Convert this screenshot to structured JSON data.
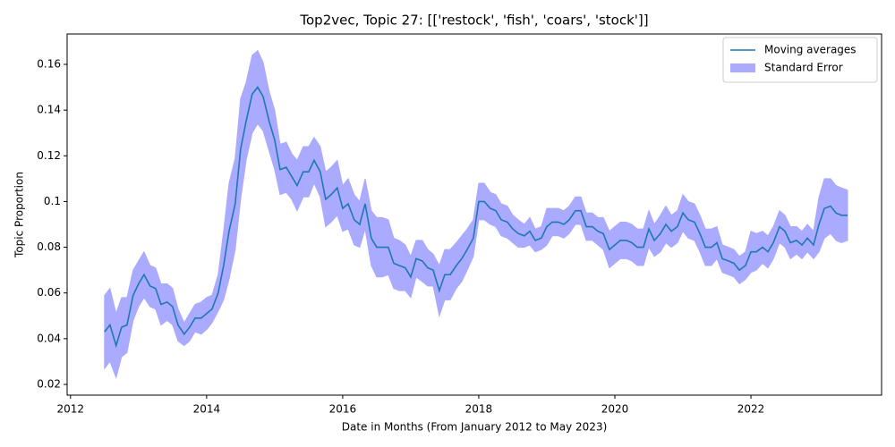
{
  "chart_data": {
    "type": "line",
    "title": "Top2vec, Topic 27: [['restock', 'fish', 'coars', 'stock']]",
    "x_label": "Date in Months (From January 2012 to May 2023)",
    "y_label": "Topic Proportion",
    "x": [
      2012.5,
      2012.58,
      2012.67,
      2012.75,
      2012.83,
      2012.92,
      2013.0,
      2013.08,
      2013.17,
      2013.25,
      2013.33,
      2013.42,
      2013.5,
      2013.58,
      2013.67,
      2013.75,
      2013.83,
      2013.92,
      2014.0,
      2014.08,
      2014.17,
      2014.25,
      2014.33,
      2014.42,
      2014.5,
      2014.58,
      2014.67,
      2014.75,
      2014.83,
      2014.92,
      2015.0,
      2015.08,
      2015.17,
      2015.25,
      2015.33,
      2015.42,
      2015.5,
      2015.58,
      2015.67,
      2015.75,
      2015.83,
      2015.92,
      2016.0,
      2016.08,
      2016.17,
      2016.25,
      2016.33,
      2016.42,
      2016.5,
      2016.58,
      2016.67,
      2016.75,
      2016.83,
      2016.92,
      2017.0,
      2017.08,
      2017.17,
      2017.25,
      2017.33,
      2017.42,
      2017.5,
      2017.58,
      2017.67,
      2017.75,
      2017.83,
      2017.92,
      2018.0,
      2018.08,
      2018.17,
      2018.25,
      2018.33,
      2018.42,
      2018.5,
      2018.58,
      2018.67,
      2018.75,
      2018.83,
      2018.92,
      2019.0,
      2019.08,
      2019.17,
      2019.25,
      2019.33,
      2019.42,
      2019.5,
      2019.58,
      2019.67,
      2019.75,
      2019.83,
      2019.92,
      2020.0,
      2020.08,
      2020.17,
      2020.25,
      2020.33,
      2020.42,
      2020.5,
      2020.58,
      2020.67,
      2020.75,
      2020.83,
      2020.92,
      2021.0,
      2021.08,
      2021.17,
      2021.25,
      2021.33,
      2021.42,
      2021.5,
      2021.58,
      2021.67,
      2021.75,
      2021.83,
      2021.92,
      2022.0,
      2022.08,
      2022.17,
      2022.25,
      2022.33,
      2022.42,
      2022.5,
      2022.58,
      2022.67,
      2022.75,
      2022.83,
      2022.92,
      2023.0,
      2023.08,
      2023.17,
      2023.25,
      2023.33,
      2023.42
    ],
    "series": [
      {
        "name": "Moving averages",
        "color": "#1f77b4",
        "values": [
          0.043,
          0.046,
          0.037,
          0.045,
          0.046,
          0.059,
          0.064,
          0.068,
          0.063,
          0.062,
          0.055,
          0.056,
          0.054,
          0.046,
          0.042,
          0.045,
          0.049,
          0.049,
          0.051,
          0.053,
          0.06,
          0.072,
          0.087,
          0.099,
          0.123,
          0.135,
          0.147,
          0.15,
          0.146,
          0.135,
          0.127,
          0.114,
          0.115,
          0.111,
          0.107,
          0.113,
          0.113,
          0.118,
          0.113,
          0.101,
          0.103,
          0.106,
          0.097,
          0.099,
          0.092,
          0.09,
          0.099,
          0.084,
          0.08,
          0.08,
          0.08,
          0.073,
          0.072,
          0.071,
          0.067,
          0.075,
          0.074,
          0.071,
          0.07,
          0.061,
          0.068,
          0.068,
          0.072,
          0.075,
          0.079,
          0.084,
          0.1,
          0.1,
          0.097,
          0.096,
          0.092,
          0.091,
          0.088,
          0.086,
          0.085,
          0.087,
          0.083,
          0.084,
          0.089,
          0.091,
          0.091,
          0.09,
          0.092,
          0.096,
          0.096,
          0.089,
          0.089,
          0.087,
          0.086,
          0.079,
          0.081,
          0.083,
          0.083,
          0.082,
          0.08,
          0.08,
          0.088,
          0.083,
          0.086,
          0.09,
          0.087,
          0.089,
          0.095,
          0.092,
          0.091,
          0.086,
          0.08,
          0.08,
          0.082,
          0.075,
          0.074,
          0.073,
          0.07,
          0.072,
          0.078,
          0.078,
          0.08,
          0.078,
          0.082,
          0.089,
          0.087,
          0.082,
          0.083,
          0.081,
          0.084,
          0.081,
          0.09,
          0.097,
          0.098,
          0.095,
          0.094,
          0.094
        ]
      }
    ],
    "error_band": {
      "name": "Standard Error",
      "color": "#aaaaff",
      "values": [
        0.016,
        0.016,
        0.014,
        0.013,
        0.012,
        0.011,
        0.01,
        0.01,
        0.009,
        0.009,
        0.009,
        0.008,
        0.008,
        0.007,
        0.005,
        0.006,
        0.006,
        0.007,
        0.007,
        0.006,
        0.008,
        0.015,
        0.021,
        0.02,
        0.022,
        0.017,
        0.017,
        0.016,
        0.015,
        0.013,
        0.013,
        0.011,
        0.011,
        0.01,
        0.011,
        0.011,
        0.011,
        0.01,
        0.011,
        0.012,
        0.012,
        0.012,
        0.01,
        0.011,
        0.011,
        0.01,
        0.011,
        0.012,
        0.013,
        0.013,
        0.012,
        0.011,
        0.011,
        0.01,
        0.009,
        0.008,
        0.009,
        0.008,
        0.007,
        0.011,
        0.011,
        0.011,
        0.01,
        0.01,
        0.009,
        0.008,
        0.008,
        0.008,
        0.007,
        0.007,
        0.007,
        0.007,
        0.006,
        0.006,
        0.005,
        0.006,
        0.005,
        0.005,
        0.008,
        0.006,
        0.006,
        0.006,
        0.006,
        0.006,
        0.006,
        0.006,
        0.006,
        0.006,
        0.007,
        0.008,
        0.008,
        0.008,
        0.008,
        0.008,
        0.008,
        0.008,
        0.008,
        0.007,
        0.008,
        0.008,
        0.007,
        0.007,
        0.008,
        0.008,
        0.008,
        0.008,
        0.008,
        0.008,
        0.007,
        0.006,
        0.006,
        0.006,
        0.006,
        0.006,
        0.009,
        0.008,
        0.007,
        0.007,
        0.007,
        0.007,
        0.007,
        0.007,
        0.006,
        0.006,
        0.006,
        0.006,
        0.012,
        0.013,
        0.012,
        0.012,
        0.012,
        0.011
      ]
    },
    "xlim": [
      2011.95,
      2023.92
    ],
    "xticks": [
      2012,
      2014,
      2016,
      2018,
      2020,
      2022
    ],
    "ylim": [
      0.0153,
      0.1733
    ],
    "yticks": [
      0.02,
      0.04,
      0.06,
      0.08,
      0.1,
      0.12,
      0.14,
      0.16
    ],
    "grid": false,
    "legend": "upper right"
  }
}
